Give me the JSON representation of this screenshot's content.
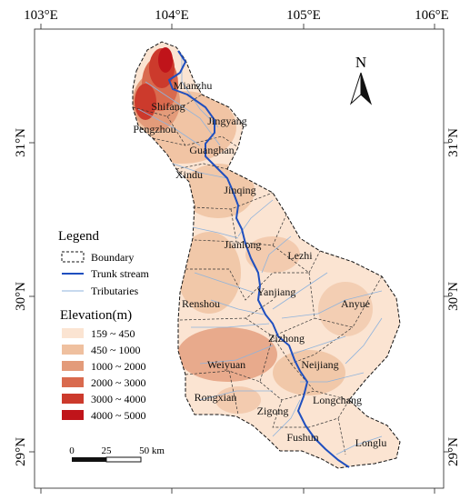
{
  "graticule": {
    "top_labels": [
      "103°E",
      "104°E",
      "105°E",
      "106°E"
    ],
    "left_labels": [
      "31°N",
      "30°N",
      "29°N"
    ],
    "right_labels": [
      "31°N",
      "30°N",
      "29°N"
    ]
  },
  "north_arrow": {
    "label": "N"
  },
  "places": [
    "Mianzhu",
    "Shifang",
    "Pengzhou",
    "Jingyang",
    "Guanghan",
    "Xindu",
    "Jinqing",
    "Jianlong",
    "Lezhi",
    "Yanjiang",
    "Renshou",
    "Anyue",
    "Zizhong",
    "Weiyuan",
    "Neijiang",
    "Rongxian",
    "Longchang",
    "Zigong",
    "Fushun",
    "Longlu"
  ],
  "legend": {
    "title": "Legend",
    "items": [
      {
        "label": "Boundary",
        "symbol": "dashed-box"
      },
      {
        "label": "Trunk stream",
        "color": "#1f4fbf"
      },
      {
        "label": "Tributaries",
        "color": "#8fb3dc"
      }
    ],
    "elevation_title": "Elevation(m)",
    "elevation_classes": [
      {
        "label": "159 ~ 450",
        "color": "#fbe4d2"
      },
      {
        "label": "450 ~ 1000",
        "color": "#efc09f"
      },
      {
        "label": "1000 ~ 2000",
        "color": "#e39b7a"
      },
      {
        "label": "2000 ~ 3000",
        "color": "#d96a4e"
      },
      {
        "label": "3000 ~ 4000",
        "color": "#cc3a2c"
      },
      {
        "label": "4000 ~ 5000",
        "color": "#c0141a"
      }
    ]
  },
  "scale_bar": {
    "labels": [
      "0",
      "25",
      "50 km"
    ]
  }
}
